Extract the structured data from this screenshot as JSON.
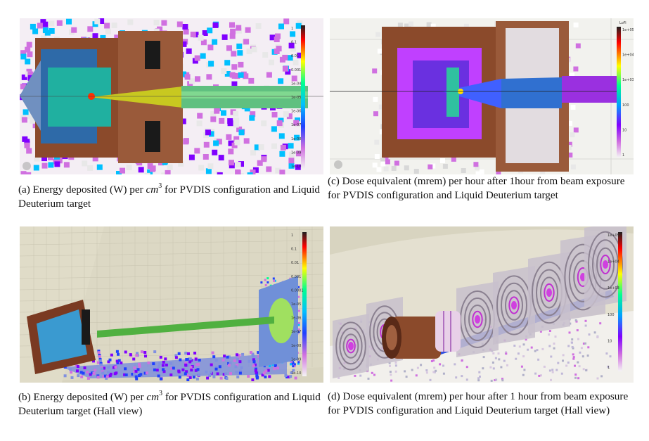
{
  "figures": [
    {
      "id": "a",
      "caption_prefix": "(a) Energy deposited (W) per ",
      "caption_math": "cm",
      "caption_sup": "3",
      "caption_suffix": " for PVDIS configuration and Liquid Deuterium target",
      "colorbar_title": "",
      "colorbar_labels": [
        "1",
        "0.1",
        "0.01",
        "0.001",
        "1e-04",
        "1e-05",
        "1e-06",
        "1e-07",
        "1e-08",
        "1e-09",
        "1e-10"
      ]
    },
    {
      "id": "b",
      "caption_prefix": "(b) Energy deposited (W) per ",
      "caption_math": "cm",
      "caption_sup": "3",
      "caption_suffix": " for PVDIS configuration and Liquid Deuterium target (Hall view)",
      "colorbar_title": "",
      "colorbar_labels": [
        "1",
        "0.1",
        "0.01",
        "0.001",
        "0.0001",
        "1e-05",
        "1e-06",
        "1e-07",
        "1e-08",
        "1e-09",
        "1e-10"
      ]
    },
    {
      "id": "c",
      "caption_text": "(c) Dose equivalent (mrem) per hour after 1hour from beam exposure for PVDIS configuration and Liquid Deuterium target",
      "colorbar_title": "LoFi",
      "colorbar_labels": [
        "1e+05",
        "1e+04",
        "1e+03",
        "100",
        "10",
        "1"
      ]
    },
    {
      "id": "d",
      "caption_text": "(d) Dose equivalent (mrem) per hour after 1 hour from beam exposure for PVDIS configuration and Liquid Deuterium target (Hall view)",
      "colorbar_title": "",
      "colorbar_labels": [
        "1e+05",
        "1e+04",
        "1e+03",
        "100",
        "10",
        "1"
      ]
    }
  ],
  "colors": {
    "jet": [
      "#e8e8e8",
      "#d070e0",
      "#8000ff",
      "#2040ff",
      "#00c0ff",
      "#00ff90",
      "#a0ff00",
      "#ffff00",
      "#ff8000",
      "#ff0000",
      "#202020"
    ],
    "copper": "#8b4a2b",
    "scatter_magenta": "#c040e0",
    "hall_bg": "#d8d4bf"
  }
}
